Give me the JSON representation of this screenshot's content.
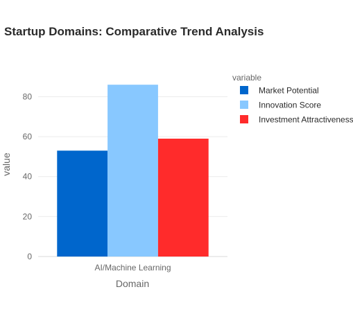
{
  "chart_data": {
    "type": "bar",
    "title": "Startup Domains: Comparative Trend Analysis",
    "xlabel": "Domain",
    "ylabel": "value",
    "categories": [
      "AI/Machine Learning"
    ],
    "ylim": [
      0,
      93
    ],
    "yticks": [
      0,
      20,
      40,
      60,
      80
    ],
    "grid": true,
    "legend": {
      "title": "variable",
      "position": "right"
    },
    "series": [
      {
        "name": "Market Potential",
        "values": [
          53
        ],
        "color": "#0066cc"
      },
      {
        "name": "Innovation Score",
        "values": [
          86
        ],
        "color": "#88c8ff"
      },
      {
        "name": "Investment Attractiveness",
        "values": [
          59
        ],
        "color": "#ff2b2b"
      }
    ]
  }
}
